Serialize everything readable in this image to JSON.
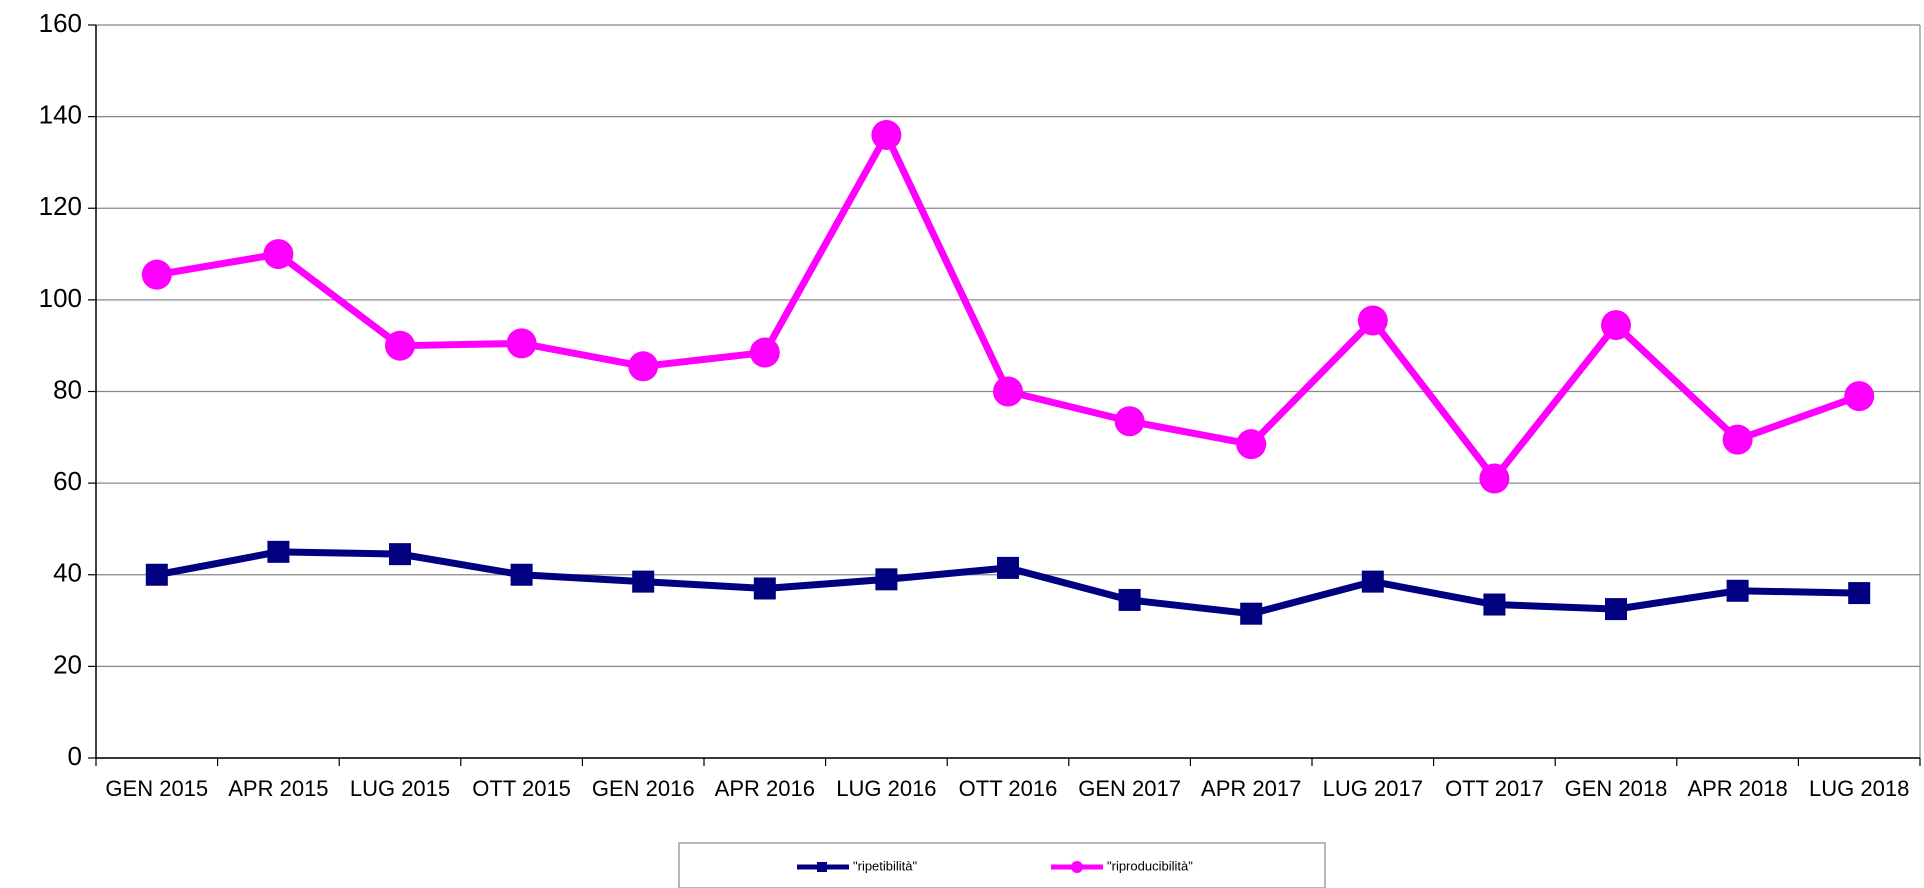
{
  "chart_data": {
    "type": "line",
    "categories": [
      "GEN 2015",
      "APR 2015",
      "LUG 2015",
      "OTT 2015",
      "GEN 2016",
      "APR 2016",
      "LUG 2016",
      "OTT 2016",
      "GEN 2017",
      "APR 2017",
      "LUG 2017",
      "OTT 2017",
      "GEN 2018",
      "APR 2018",
      "LUG 2018"
    ],
    "series": [
      {
        "name": "\"ripetibilità\"",
        "color": "#000080",
        "marker": "square",
        "values": [
          40,
          45,
          44.5,
          40,
          38.5,
          37,
          39,
          41.5,
          34.5,
          31.5,
          38.5,
          33.5,
          32.5,
          36.5,
          36
        ]
      },
      {
        "name": "\"riproducibilità\"",
        "color": "#ff00ff",
        "marker": "circle",
        "values": [
          105.5,
          110,
          90,
          90.5,
          85.5,
          88.5,
          136,
          80,
          73.5,
          68.5,
          95.5,
          61,
          94.5,
          69.5,
          79
        ]
      }
    ],
    "ylim": [
      0,
      160
    ],
    "yticks": [
      0,
      20,
      40,
      60,
      80,
      100,
      120,
      140,
      160
    ],
    "grid": true,
    "legend": "bottom"
  }
}
